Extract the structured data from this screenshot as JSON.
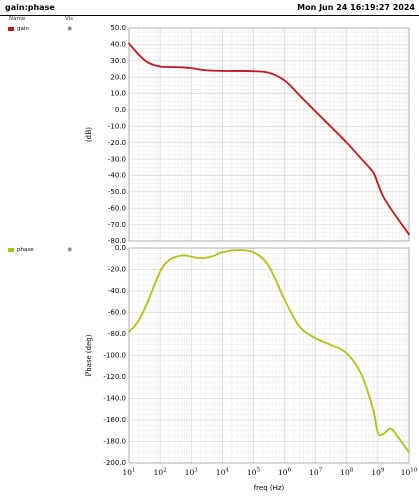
{
  "header": {
    "title": "gain:phase",
    "timestamp": "Mon Jun 24 16:19:27 2024"
  },
  "legend": {
    "name_header": "Name",
    "vis_header": "Vis",
    "items": [
      {
        "label": "gain",
        "color": "#c0181f",
        "icon": "eye-icon"
      },
      {
        "label": "phase",
        "color": "#b5bf17",
        "icon": "eye-icon"
      }
    ]
  },
  "chart_data": [
    {
      "type": "line",
      "xscale": "log",
      "xlim": [
        10,
        10000000000
      ],
      "x_tick_labels": [
        "10^1",
        "10^2",
        "10^3",
        "10^4",
        "10^5",
        "10^6",
        "10^7",
        "10^8",
        "10^9",
        "10^10"
      ],
      "xlabel": "freq (Hz)",
      "ylabel": "(dB)",
      "ylim": [
        -80,
        50
      ],
      "y_ticks": [
        50,
        40,
        30,
        20,
        10,
        0,
        -10,
        -20,
        -30,
        -40,
        -50,
        -60,
        -70,
        -80
      ],
      "y_tick_labels": [
        "50.0",
        "40.0",
        "30.0",
        "20.0",
        "10.0",
        "0.0",
        "-10.0",
        "-20.0",
        "-30.0",
        "-40.0",
        "-50.0",
        "-60.0",
        "-70.0",
        "-80.0"
      ],
      "grid": true,
      "series": [
        {
          "name": "gain",
          "color": "#c0181f",
          "x": [
            10,
            20,
            40,
            100,
            200,
            500,
            1000,
            3000,
            10000,
            30000,
            100000,
            300000,
            1000000,
            3000000,
            10000000,
            30000000,
            100000000,
            300000000,
            700000000,
            1000000000,
            1500000000,
            3000000000,
            10000000000
          ],
          "y": [
            40.5,
            34,
            29,
            26.5,
            26.2,
            26,
            25.5,
            24.2,
            23.8,
            23.8,
            23.6,
            22.8,
            18,
            9,
            -1,
            -10,
            -20,
            -30,
            -38,
            -45,
            -53,
            -62,
            -76
          ]
        }
      ]
    },
    {
      "type": "line",
      "xscale": "log",
      "xlim": [
        10,
        10000000000
      ],
      "x_tick_labels": [
        "10^1",
        "10^2",
        "10^3",
        "10^4",
        "10^5",
        "10^6",
        "10^7",
        "10^8",
        "10^9",
        "10^10"
      ],
      "xlabel": "freq (Hz)",
      "ylabel": "Phase (deg)",
      "ylim": [
        -200,
        0
      ],
      "y_ticks": [
        0,
        -20,
        -40,
        -60,
        -80,
        -100,
        -120,
        -140,
        -160,
        -180,
        -200
      ],
      "y_tick_labels": [
        "0.0",
        "-20.0",
        "-40.0",
        "-60.0",
        "-80.0",
        "-100.0",
        "-120.0",
        "-140.0",
        "-160.0",
        "-180.0",
        "-200.0"
      ],
      "grid": true,
      "series": [
        {
          "name": "phase",
          "color": "#b5bf17",
          "x": [
            10,
            20,
            40,
            100,
            200,
            500,
            1000,
            2000,
            5000,
            10000,
            30000,
            100000,
            300000,
            1000000,
            3000000,
            10000000,
            30000000,
            100000000,
            300000000,
            700000000,
            1000000000,
            1500000000,
            2500000000,
            4000000000,
            10000000000
          ],
          "y": [
            -78,
            -68,
            -50,
            -22,
            -11,
            -7,
            -8,
            -9.5,
            -7.5,
            -4,
            -2,
            -4,
            -16,
            -48,
            -73,
            -84,
            -90,
            -98,
            -118,
            -150,
            -172,
            -173,
            -168,
            -174,
            -190
          ]
        }
      ]
    }
  ]
}
